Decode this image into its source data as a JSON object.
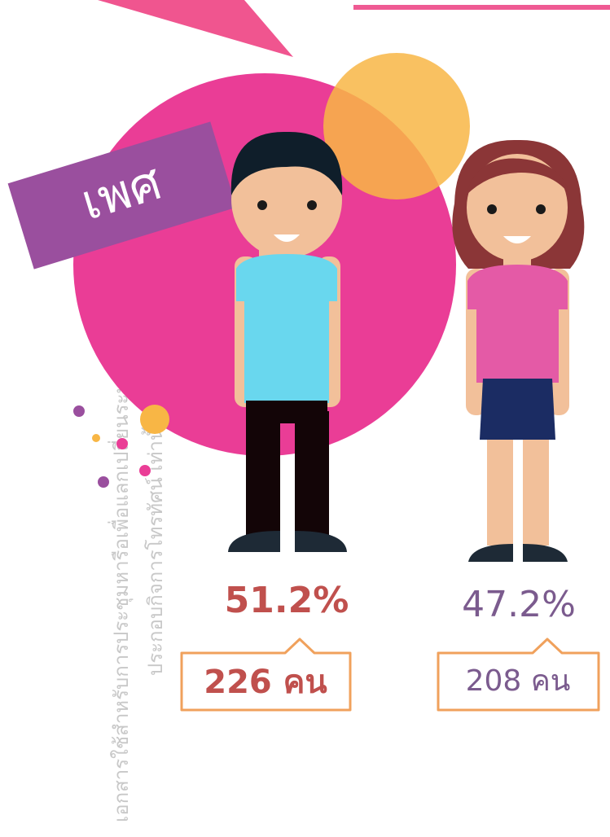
{
  "banner": {
    "label": "เพศ"
  },
  "watermark": {
    "line1": "เอกสารใช้สำหรับการประชุมหารือเพื่อแลกเปลี่ยนระหว่างผู้เชี่ยว",
    "line2": "ประกอบกิจการโทรทัศน์ เท่านั้น"
  },
  "groups": [
    {
      "percent": "51.2%",
      "count": "226 คน"
    },
    {
      "percent": "47.2%",
      "count": "208 คน"
    }
  ]
}
